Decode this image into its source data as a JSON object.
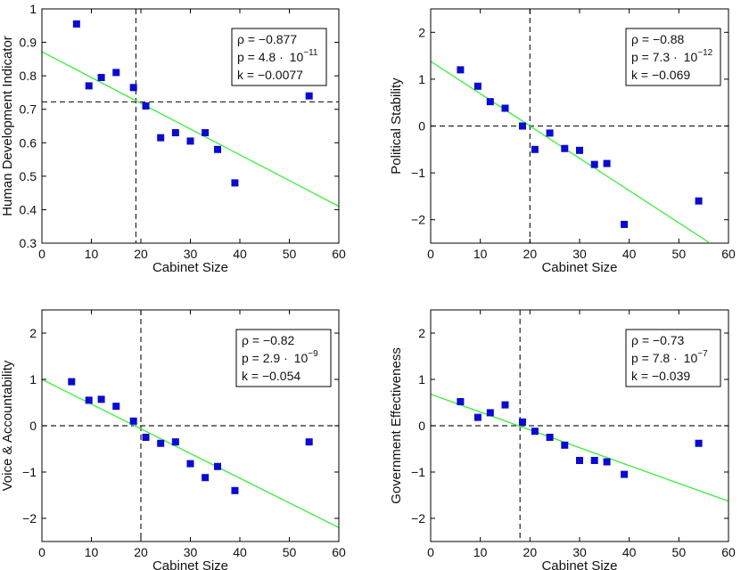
{
  "chart_data": [
    {
      "type": "scatter",
      "xlabel": "Cabinet Size",
      "ylabel": "Human Development Indicator",
      "xlim": [
        0,
        60
      ],
      "ylim": [
        0.3,
        1.0
      ],
      "xticks": [
        0,
        10,
        20,
        30,
        40,
        50,
        60
      ],
      "yticks": [
        0.3,
        0.4,
        0.5,
        0.6,
        0.7,
        0.8,
        0.9,
        1.0
      ],
      "ytick_labels": [
        "0.3",
        "0.4",
        "0.5",
        "0.6",
        "0.7",
        "0.8",
        "0.9",
        "1"
      ],
      "points": {
        "x": [
          7,
          9.5,
          12,
          15,
          18.5,
          21,
          24,
          27,
          30,
          33,
          35.5,
          39,
          54
        ],
        "y": [
          0.955,
          0.77,
          0.795,
          0.81,
          0.765,
          0.71,
          0.615,
          0.63,
          0.605,
          0.63,
          0.58,
          0.48,
          0.74
        ]
      },
      "fit_line": {
        "x": [
          0,
          60
        ],
        "y": [
          0.872,
          0.41
        ]
      },
      "vline_x": 19,
      "hline_y": 0.722,
      "stats": {
        "rho": "ρ = −0.877",
        "p_base": "p = 4.8 ·",
        "p_exp": "10",
        "p_sup": "−11",
        "k": "k = −0.0077"
      },
      "colors": {
        "marker": "#0a0ad2",
        "fit": "#44ee44",
        "ref": "#222222"
      }
    },
    {
      "type": "scatter",
      "xlabel": "Cabinet Size",
      "ylabel": "Political Stability",
      "xlim": [
        0,
        60
      ],
      "ylim": [
        -2.5,
        2.5
      ],
      "xticks": [
        0,
        10,
        20,
        30,
        40,
        50,
        60
      ],
      "yticks": [
        -2,
        -1,
        0,
        1,
        2
      ],
      "ytick_labels": [
        "−2",
        "−1",
        "0",
        "1",
        "2"
      ],
      "points": {
        "x": [
          6,
          9.5,
          12,
          15,
          18.5,
          21,
          24,
          27,
          30,
          33,
          35.5,
          39,
          54
        ],
        "y": [
          1.2,
          0.85,
          0.52,
          0.38,
          0.0,
          -0.5,
          -0.15,
          -0.48,
          -0.52,
          -0.82,
          -0.8,
          -2.1,
          -1.6
        ]
      },
      "fit_line": {
        "x": [
          0,
          56
        ],
        "y": [
          1.38,
          -2.48
        ]
      },
      "vline_x": 20,
      "hline_y": 0,
      "stats": {
        "rho": "ρ = −0.88",
        "p_base": "p = 7.3 ·",
        "p_exp": "10",
        "p_sup": "−12",
        "k": "k = −0.069"
      },
      "colors": {
        "marker": "#0a0ad2",
        "fit": "#44ee44",
        "ref": "#222222"
      }
    },
    {
      "type": "scatter",
      "xlabel": "Cabinet Size",
      "ylabel": "Voice & Accountability",
      "xlim": [
        0,
        60
      ],
      "ylim": [
        -2.5,
        2.5
      ],
      "xticks": [
        0,
        10,
        20,
        30,
        40,
        50,
        60
      ],
      "yticks": [
        -2,
        -1,
        0,
        1,
        2
      ],
      "ytick_labels": [
        "−2",
        "−1",
        "0",
        "1",
        "2"
      ],
      "points": {
        "x": [
          6,
          9.5,
          12,
          15,
          18.5,
          21,
          24,
          27,
          30,
          33,
          35.5,
          39,
          54
        ],
        "y": [
          0.95,
          0.55,
          0.57,
          0.42,
          0.1,
          -0.25,
          -0.38,
          -0.35,
          -0.82,
          -1.12,
          -0.88,
          -1.4,
          -0.35
        ]
      },
      "fit_line": {
        "x": [
          0,
          60
        ],
        "y": [
          1.0,
          -2.2
        ]
      },
      "vline_x": 20,
      "hline_y": 0,
      "stats": {
        "rho": "ρ = −0.82",
        "p_base": "p = 2.9 ·",
        "p_exp": "10",
        "p_sup": "−9",
        "k": "k = −0.054"
      },
      "colors": {
        "marker": "#0a0ad2",
        "fit": "#44ee44",
        "ref": "#222222"
      }
    },
    {
      "type": "scatter",
      "xlabel": "Cabinet Size",
      "ylabel": "Government Effectiveness",
      "xlim": [
        0,
        60
      ],
      "ylim": [
        -2.5,
        2.5
      ],
      "xticks": [
        0,
        10,
        20,
        30,
        40,
        50,
        60
      ],
      "yticks": [
        -2,
        -1,
        0,
        1,
        2
      ],
      "ytick_labels": [
        "−2",
        "−1",
        "0",
        "1",
        "2"
      ],
      "points": {
        "x": [
          6,
          9.5,
          12,
          15,
          18.5,
          21,
          24,
          27,
          30,
          33,
          35.5,
          39,
          54
        ],
        "y": [
          0.52,
          0.18,
          0.28,
          0.45,
          0.08,
          -0.12,
          -0.25,
          -0.42,
          -0.75,
          -0.75,
          -0.78,
          -1.05,
          -0.38
        ]
      },
      "fit_line": {
        "x": [
          0,
          60
        ],
        "y": [
          0.68,
          -1.63
        ]
      },
      "vline_x": 18,
      "hline_y": 0,
      "stats": {
        "rho": "ρ = −0.73",
        "p_base": "p = 7.8 ·",
        "p_exp": "10",
        "p_sup": "−7",
        "k": "k = −0.039"
      },
      "colors": {
        "marker": "#0a0ad2",
        "fit": "#44ee44",
        "ref": "#222222"
      }
    }
  ]
}
